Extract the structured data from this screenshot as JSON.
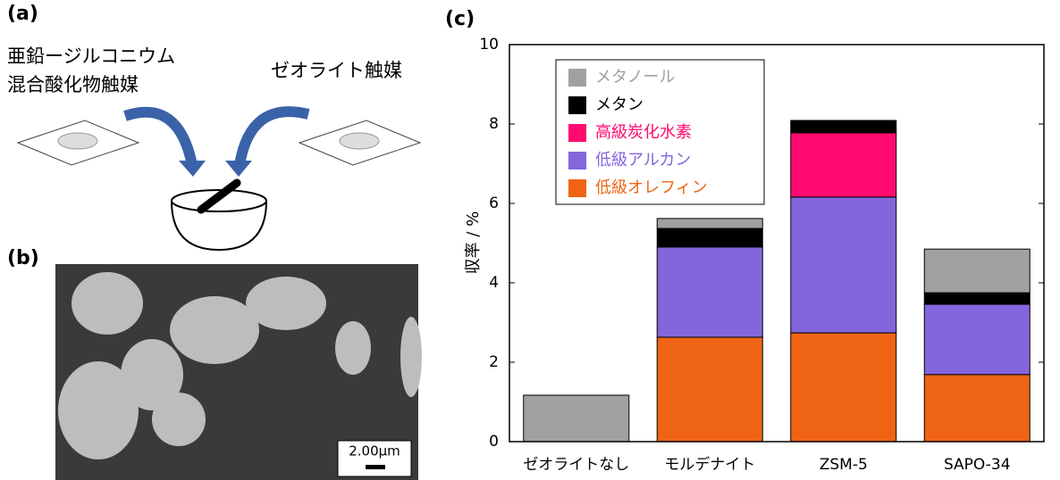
{
  "panel_labels": [
    "(a)",
    "(b)",
    "(c)"
  ],
  "diagram": {
    "left_catalyst": [
      "亜鉛ージルコニウム",
      "混合酸化物触媒"
    ],
    "right_catalyst": "ゼオライト触媒"
  },
  "sem": {
    "scale_bar": "2.00μm"
  },
  "chart_data": {
    "type": "stacked_bar",
    "y_label": "収率 / %",
    "categories": [
      "ゼオライトなし",
      "モルデナイト",
      "ZSM-5",
      "SAPO-34"
    ],
    "series": [
      {
        "name": "低級オレフィン",
        "color": "#ee6414",
        "values": [
          0,
          2.63,
          2.74,
          1.69
        ]
      },
      {
        "name": "低級アルカン",
        "color": "#8466dc",
        "values": [
          0,
          2.27,
          3.42,
          1.77
        ]
      },
      {
        "name": "高級炭化水素",
        "color": "#ff0a6e",
        "values": [
          0,
          0,
          1.62,
          0
        ]
      },
      {
        "name": "メタン",
        "color": "#000000",
        "values": [
          0,
          0.47,
          0.31,
          0.29
        ]
      },
      {
        "name": "メタノール",
        "color": "#a0a0a0",
        "values": [
          1.17,
          0.25,
          0,
          1.1
        ]
      }
    ],
    "ylim": [
      0,
      10
    ],
    "yticks": [
      0,
      2,
      4,
      6,
      8,
      10
    ]
  }
}
